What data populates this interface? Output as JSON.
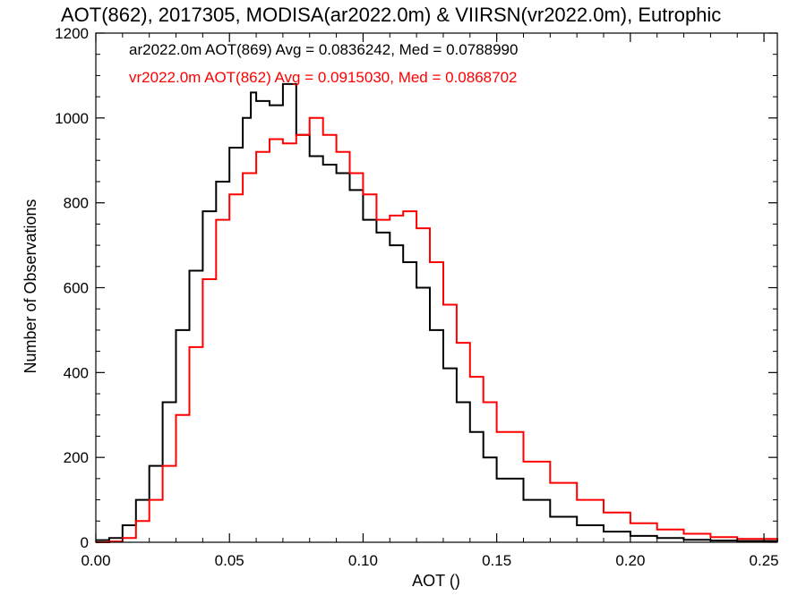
{
  "chart_data": {
    "type": "step-histogram",
    "title": "AOT(862), 2017305, MODISA(ar2022.0m) & VIIRSN(vr2022.0m), Eutrophic",
    "xlabel": "AOT ()",
    "ylabel": "Number of Observations",
    "xlim": [
      0.0,
      0.255
    ],
    "ylim": [
      0,
      1200
    ],
    "xticks": [
      0.0,
      0.05,
      0.1,
      0.15,
      0.2,
      0.25
    ],
    "xtick_labels": [
      "0.00",
      "0.05",
      "0.10",
      "0.15",
      "0.20",
      "0.25"
    ],
    "yticks": [
      0,
      200,
      400,
      600,
      800,
      1000,
      1200
    ],
    "ytick_labels": [
      "0",
      "200",
      "400",
      "600",
      "800",
      "1000",
      "1200"
    ],
    "grid": false,
    "legend_position": "top-left",
    "series": [
      {
        "name": "ar2022.0m AOT(869) Avg = 0.0836242, Med = 0.0788990",
        "color": "#000000",
        "x": [
          0.0,
          0.005,
          0.01,
          0.015,
          0.02,
          0.025,
          0.03,
          0.035,
          0.04,
          0.045,
          0.05,
          0.055,
          0.058,
          0.06,
          0.065,
          0.07,
          0.075,
          0.08,
          0.085,
          0.09,
          0.095,
          0.1,
          0.105,
          0.11,
          0.115,
          0.12,
          0.125,
          0.13,
          0.135,
          0.14,
          0.145,
          0.15,
          0.16,
          0.17,
          0.18,
          0.19,
          0.2,
          0.21,
          0.22,
          0.23,
          0.24,
          0.255
        ],
        "y": [
          5,
          10,
          40,
          100,
          180,
          330,
          500,
          640,
          780,
          850,
          930,
          1000,
          1060,
          1040,
          1030,
          1080,
          960,
          910,
          890,
          870,
          830,
          760,
          730,
          700,
          660,
          600,
          500,
          410,
          330,
          260,
          200,
          150,
          100,
          60,
          40,
          25,
          15,
          10,
          6,
          4,
          3,
          2
        ]
      },
      {
        "name": "vr2022.0m AOT(862) Avg = 0.0915030, Med = 0.0868702",
        "color": "#ff0000",
        "x": [
          0.0,
          0.005,
          0.01,
          0.015,
          0.02,
          0.025,
          0.03,
          0.035,
          0.04,
          0.045,
          0.05,
          0.055,
          0.06,
          0.065,
          0.07,
          0.075,
          0.08,
          0.085,
          0.09,
          0.095,
          0.1,
          0.105,
          0.11,
          0.115,
          0.12,
          0.125,
          0.13,
          0.135,
          0.14,
          0.145,
          0.15,
          0.16,
          0.17,
          0.18,
          0.19,
          0.2,
          0.21,
          0.22,
          0.23,
          0.24,
          0.255
        ],
        "y": [
          0,
          2,
          10,
          50,
          100,
          180,
          300,
          460,
          620,
          760,
          820,
          870,
          920,
          950,
          940,
          960,
          1000,
          960,
          920,
          870,
          820,
          760,
          770,
          780,
          740,
          660,
          560,
          470,
          390,
          330,
          260,
          190,
          140,
          100,
          70,
          45,
          30,
          20,
          12,
          8,
          5
        ]
      }
    ]
  }
}
